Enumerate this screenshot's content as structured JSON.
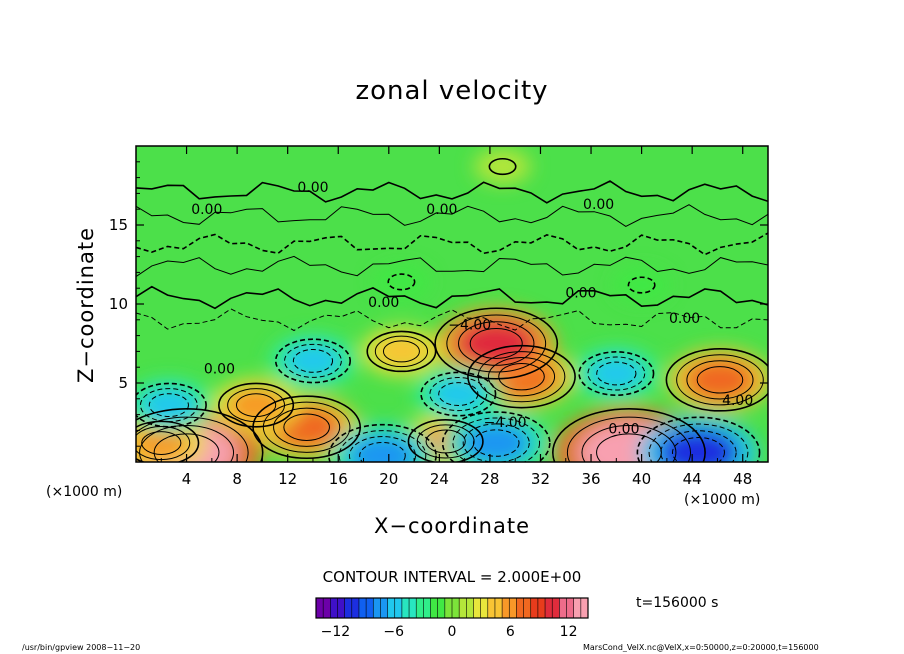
{
  "title": "zonal velocity",
  "xlabel": "X−coordinate",
  "ylabel": "Z−coordinate",
  "x_unit_left": "(×1000 m)",
  "x_unit_right": "(×1000 m)",
  "contour_interval_text": "CONTOUR INTERVAL = 2.000E+00",
  "time_text": "t=156000 s",
  "footer_left": "/usr/bin/gpview  2008−11−20",
  "footer_right": "MarsCond_VelX.nc@VelX,x=0:50000,z=0:20000,t=156000",
  "chart_data": {
    "type": "heatmap",
    "title": "zonal velocity",
    "xlabel": "X-coordinate",
    "ylabel": "Z-coordinate",
    "x_unit": "(x1000 m)",
    "xlim": [
      0,
      50
    ],
    "ylim": [
      0,
      20
    ],
    "x_ticks": [
      4,
      8,
      12,
      16,
      20,
      24,
      28,
      32,
      36,
      40,
      44,
      48
    ],
    "y_ticks": [
      5,
      10,
      15
    ],
    "contour_interval": 2.0,
    "colorbar": {
      "min": -14,
      "max": 14,
      "ticks": [
        -12,
        -6,
        0,
        6,
        12
      ],
      "colors": [
        "#6c00a8",
        "#3f10c8",
        "#1c2ee0",
        "#1060f0",
        "#1a96f2",
        "#20c8ee",
        "#28e6c0",
        "#30ee8a",
        "#40e844",
        "#7ce43a",
        "#b4e63a",
        "#e8e63c",
        "#f8c434",
        "#f89828",
        "#f06820",
        "#e83c1c",
        "#e02c3c",
        "#ee6c8a",
        "#f8a0b0"
      ]
    },
    "contour_labels": [
      {
        "text": "0.00",
        "x": 14.0,
        "y": 17.1
      },
      {
        "text": "0.00",
        "x": 5.6,
        "y": 15.7
      },
      {
        "text": "0.00",
        "x": 24.2,
        "y": 15.7
      },
      {
        "text": "0.00",
        "x": 36.6,
        "y": 16.0
      },
      {
        "text": "0.00",
        "x": 19.6,
        "y": 9.8
      },
      {
        "text": "0.00",
        "x": 35.2,
        "y": 10.4
      },
      {
        "text": "0.00",
        "x": 43.4,
        "y": 8.8
      },
      {
        "text": "−4.00",
        "x": 26.4,
        "y": 8.4
      },
      {
        "text": "0.00",
        "x": 6.6,
        "y": 5.6
      },
      {
        "text": "4.00",
        "x": 47.6,
        "y": 3.6
      },
      {
        "text": "−4.00",
        "x": 29.2,
        "y": 2.2
      },
      {
        "text": "0.00",
        "x": 38.6,
        "y": 1.8
      }
    ],
    "features": [
      {
        "x": 4,
        "y": 0.6,
        "value": 14
      },
      {
        "x": 2,
        "y": 1.2,
        "value": 6
      },
      {
        "x": 39,
        "y": 0.6,
        "value": 14
      },
      {
        "x": 13.5,
        "y": 2.2,
        "value": 8
      },
      {
        "x": 9.5,
        "y": 3.6,
        "value": 6
      },
      {
        "x": 30.5,
        "y": 5.4,
        "value": 8
      },
      {
        "x": 28.5,
        "y": 7.5,
        "value": 10
      },
      {
        "x": 46.2,
        "y": 5.2,
        "value": 8
      },
      {
        "x": 24.5,
        "y": 1.3,
        "value": 6
      },
      {
        "x": 21,
        "y": 7.0,
        "value": 5
      },
      {
        "x": 14,
        "y": 6.4,
        "value": -6
      },
      {
        "x": 2.6,
        "y": 3.6,
        "value": -6
      },
      {
        "x": 25.5,
        "y": 4.3,
        "value": -6
      },
      {
        "x": 28.5,
        "y": 1.2,
        "value": -8
      },
      {
        "x": 38,
        "y": 5.6,
        "value": -6
      },
      {
        "x": 44.5,
        "y": 0.6,
        "value": -10
      },
      {
        "x": 19.5,
        "y": 0.4,
        "value": -8
      },
      {
        "x": 21,
        "y": 11.4,
        "value": -2
      },
      {
        "x": 40,
        "y": 11.2,
        "value": -2
      },
      {
        "x": 29,
        "y": 18.7,
        "value": 2
      }
    ]
  }
}
